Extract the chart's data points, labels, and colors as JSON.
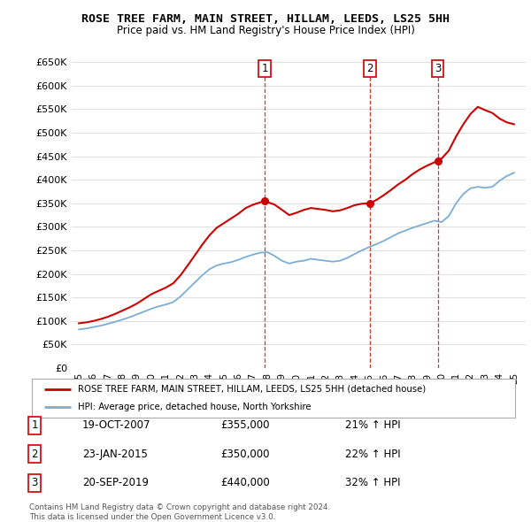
{
  "title": "ROSE TREE FARM, MAIN STREET, HILLAM, LEEDS, LS25 5HH",
  "subtitle": "Price paid vs. HM Land Registry's House Price Index (HPI)",
  "ylabel_ticks": [
    "£0",
    "£50K",
    "£100K",
    "£150K",
    "£200K",
    "£250K",
    "£300K",
    "£350K",
    "£400K",
    "£450K",
    "£500K",
    "£550K",
    "£600K",
    "£650K"
  ],
  "ytick_values": [
    0,
    50000,
    100000,
    150000,
    200000,
    250000,
    300000,
    350000,
    400000,
    450000,
    500000,
    550000,
    600000,
    650000
  ],
  "ylim": [
    0,
    660000
  ],
  "xlim_start": 1994.5,
  "xlim_end": 2025.8,
  "sales": [
    {
      "date": 2007.8,
      "price": 355000,
      "label": "1"
    },
    {
      "date": 2015.07,
      "price": 350000,
      "label": "2"
    },
    {
      "date": 2019.73,
      "price": 440000,
      "label": "3"
    }
  ],
  "vline_dates": [
    2007.8,
    2015.07,
    2019.73
  ],
  "legend_property_label": "ROSE TREE FARM, MAIN STREET, HILLAM, LEEDS, LS25 5HH (detached house)",
  "legend_hpi_label": "HPI: Average price, detached house, North Yorkshire",
  "table_rows": [
    {
      "num": "1",
      "date": "19-OCT-2007",
      "price": "£355,000",
      "hpi": "21% ↑ HPI"
    },
    {
      "num": "2",
      "date": "23-JAN-2015",
      "price": "£350,000",
      "hpi": "22% ↑ HPI"
    },
    {
      "num": "3",
      "date": "20-SEP-2019",
      "price": "£440,000",
      "hpi": "32% ↑ HPI"
    }
  ],
  "footnote": "Contains HM Land Registry data © Crown copyright and database right 2024.\nThis data is licensed under the Open Government Licence v3.0.",
  "property_color": "#cc0000",
  "hpi_color": "#7aaed6",
  "bg_color": "#ffffff",
  "grid_color": "#e0e0e0",
  "xtick_labels": [
    "95",
    "96",
    "97",
    "98",
    "99",
    "00",
    "01",
    "02",
    "03",
    "04",
    "05",
    "06",
    "07",
    "08",
    "09",
    "10",
    "11",
    "12",
    "13",
    "14",
    "15",
    "16",
    "17",
    "18",
    "19",
    "20",
    "21",
    "22",
    "23",
    "24",
    "25"
  ],
  "xtick_years": [
    1995,
    1996,
    1997,
    1998,
    1999,
    2000,
    2001,
    2002,
    2003,
    2004,
    2005,
    2006,
    2007,
    2008,
    2009,
    2010,
    2011,
    2012,
    2013,
    2014,
    2015,
    2016,
    2017,
    2018,
    2019,
    2020,
    2021,
    2022,
    2023,
    2024,
    2025
  ]
}
